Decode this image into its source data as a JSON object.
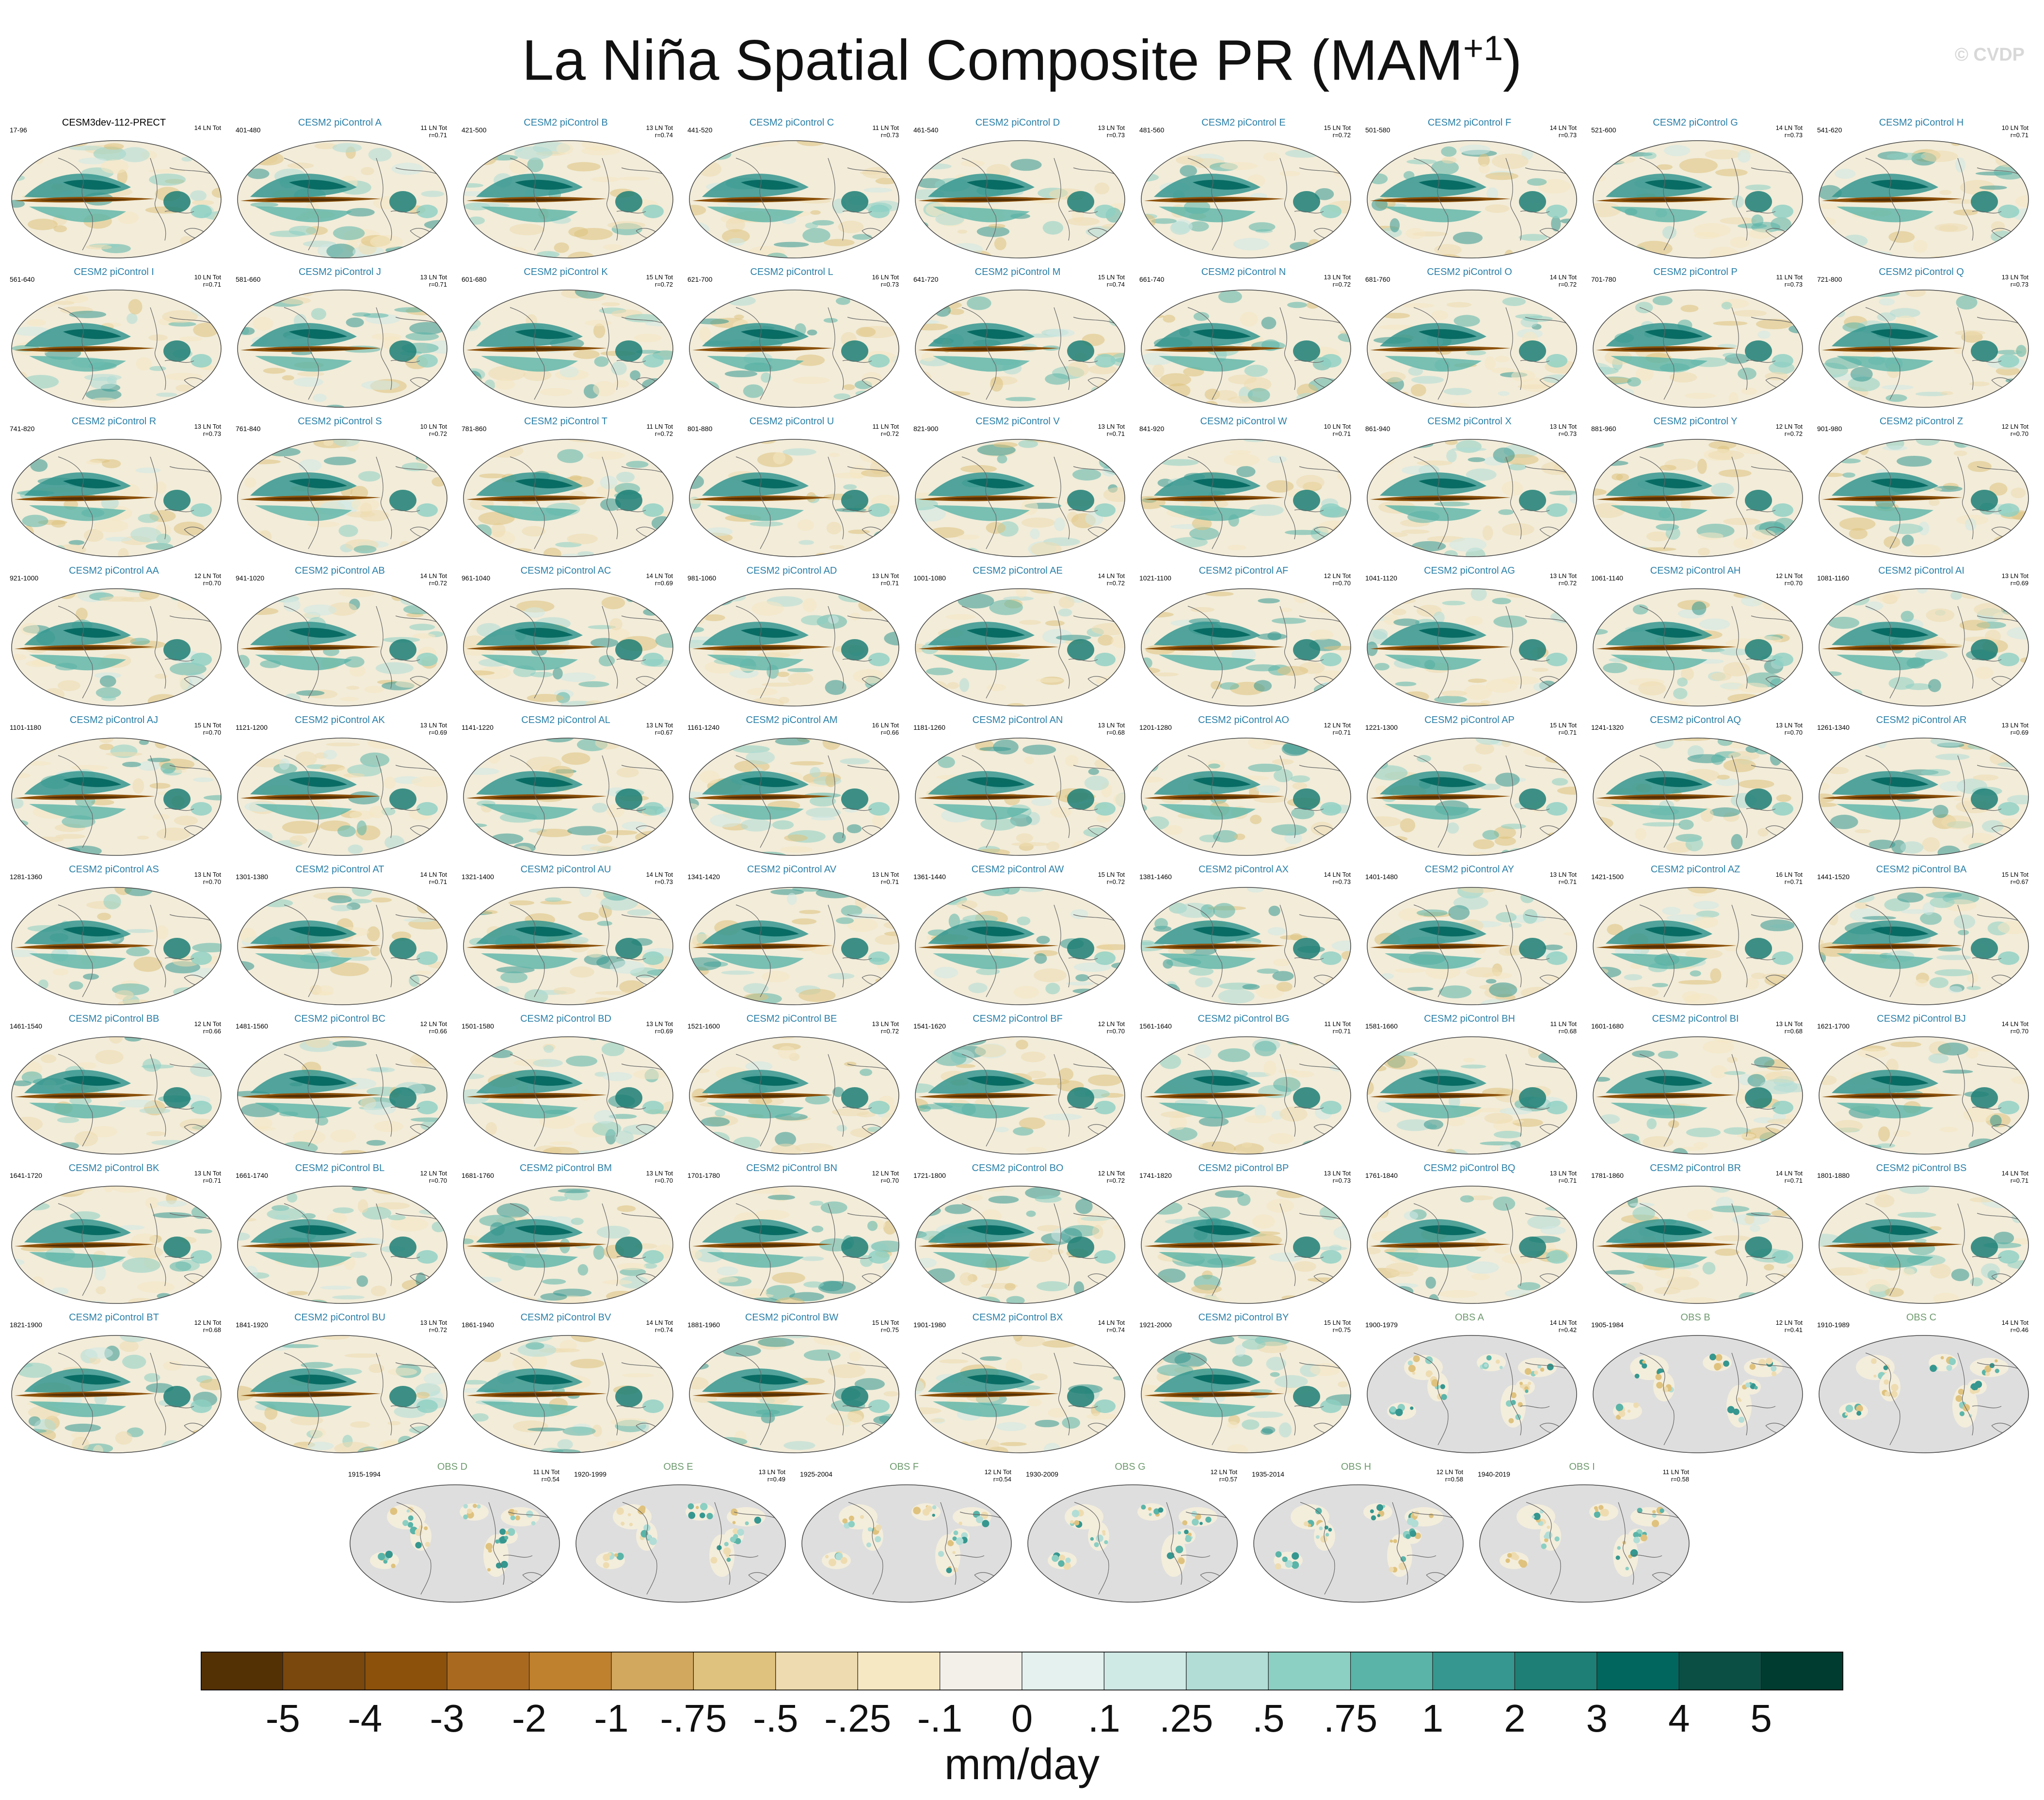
{
  "title_main": "La Niña Spatial Composite PR (MAM",
  "title_sup": "+1",
  "title_end": ")",
  "credit": "© CVDP",
  "colors": {
    "scale": [
      "#543005",
      "#7a470d",
      "#8c510a",
      "#a96a20",
      "#bf812d",
      "#d2a85f",
      "#dfc27d",
      "#eedcb0",
      "#f6e8c3",
      "#f3f0ea",
      "#e4f1ee",
      "#cfe9e5",
      "#b1ddd6",
      "#8ccfc3",
      "#5ab4a8",
      "#35978f",
      "#1d7f75",
      "#01665e",
      "#0b4f44",
      "#003c30"
    ],
    "ocean_base": "#f2ecd9",
    "land_mask": "#dedede"
  },
  "panels": [
    {
      "name": "CESM3dev-112-PRECT",
      "range": "17-96",
      "lnTot": "14 LN Tot",
      "r": ""
    },
    {
      "name": "CESM2 piControl A",
      "range": "401-480",
      "lnTot": "11 LN Tot",
      "r": "r=0.71"
    },
    {
      "name": "CESM2 piControl B",
      "range": "421-500",
      "lnTot": "13 LN Tot",
      "r": "r=0.74"
    },
    {
      "name": "CESM2 piControl C",
      "range": "441-520",
      "lnTot": "11 LN Tot",
      "r": "r=0.73"
    },
    {
      "name": "CESM2 piControl D",
      "range": "461-540",
      "lnTot": "13 LN Tot",
      "r": "r=0.73"
    },
    {
      "name": "CESM2 piControl E",
      "range": "481-560",
      "lnTot": "15 LN Tot",
      "r": "r=0.72"
    },
    {
      "name": "CESM2 piControl F",
      "range": "501-580",
      "lnTot": "14 LN Tot",
      "r": "r=0.73"
    },
    {
      "name": "CESM2 piControl G",
      "range": "521-600",
      "lnTot": "14 LN Tot",
      "r": "r=0.73"
    },
    {
      "name": "CESM2 piControl H",
      "range": "541-620",
      "lnTot": "10 LN Tot",
      "r": "r=0.71"
    },
    {
      "name": "CESM2 piControl I",
      "range": "561-640",
      "lnTot": "10 LN Tot",
      "r": "r=0.71"
    },
    {
      "name": "CESM2 piControl J",
      "range": "581-660",
      "lnTot": "13 LN Tot",
      "r": "r=0.71"
    },
    {
      "name": "CESM2 piControl K",
      "range": "601-680",
      "lnTot": "15 LN Tot",
      "r": "r=0.72"
    },
    {
      "name": "CESM2 piControl L",
      "range": "621-700",
      "lnTot": "16 LN Tot",
      "r": "r=0.73"
    },
    {
      "name": "CESM2 piControl M",
      "range": "641-720",
      "lnTot": "15 LN Tot",
      "r": "r=0.74"
    },
    {
      "name": "CESM2 piControl N",
      "range": "661-740",
      "lnTot": "13 LN Tot",
      "r": "r=0.72"
    },
    {
      "name": "CESM2 piControl O",
      "range": "681-760",
      "lnTot": "14 LN Tot",
      "r": "r=0.72"
    },
    {
      "name": "CESM2 piControl P",
      "range": "701-780",
      "lnTot": "11 LN Tot",
      "r": "r=0.73"
    },
    {
      "name": "CESM2 piControl Q",
      "range": "721-800",
      "lnTot": "13 LN Tot",
      "r": "r=0.73"
    },
    {
      "name": "CESM2 piControl R",
      "range": "741-820",
      "lnTot": "13 LN Tot",
      "r": "r=0.73"
    },
    {
      "name": "CESM2 piControl S",
      "range": "761-840",
      "lnTot": "10 LN Tot",
      "r": "r=0.72"
    },
    {
      "name": "CESM2 piControl T",
      "range": "781-860",
      "lnTot": "11 LN Tot",
      "r": "r=0.72"
    },
    {
      "name": "CESM2 piControl U",
      "range": "801-880",
      "lnTot": "11 LN Tot",
      "r": "r=0.72"
    },
    {
      "name": "CESM2 piControl V",
      "range": "821-900",
      "lnTot": "13 LN Tot",
      "r": "r=0.71"
    },
    {
      "name": "CESM2 piControl W",
      "range": "841-920",
      "lnTot": "10 LN Tot",
      "r": "r=0.71"
    },
    {
      "name": "CESM2 piControl X",
      "range": "861-940",
      "lnTot": "13 LN Tot",
      "r": "r=0.73"
    },
    {
      "name": "CESM2 piControl Y",
      "range": "881-960",
      "lnTot": "12 LN Tot",
      "r": "r=0.72"
    },
    {
      "name": "CESM2 piControl Z",
      "range": "901-980",
      "lnTot": "12 LN Tot",
      "r": "r=0.70"
    },
    {
      "name": "CESM2 piControl AA",
      "range": "921-1000",
      "lnTot": "12 LN Tot",
      "r": "r=0.70"
    },
    {
      "name": "CESM2 piControl AB",
      "range": "941-1020",
      "lnTot": "14 LN Tot",
      "r": "r=0.72"
    },
    {
      "name": "CESM2 piControl AC",
      "range": "961-1040",
      "lnTot": "14 LN Tot",
      "r": "r=0.69"
    },
    {
      "name": "CESM2 piControl AD",
      "range": "981-1060",
      "lnTot": "13 LN Tot",
      "r": "r=0.71"
    },
    {
      "name": "CESM2 piControl AE",
      "range": "1001-1080",
      "lnTot": "14 LN Tot",
      "r": "r=0.72"
    },
    {
      "name": "CESM2 piControl AF",
      "range": "1021-1100",
      "lnTot": "12 LN Tot",
      "r": "r=0.70"
    },
    {
      "name": "CESM2 piControl AG",
      "range": "1041-1120",
      "lnTot": "13 LN Tot",
      "r": "r=0.72"
    },
    {
      "name": "CESM2 piControl AH",
      "range": "1061-1140",
      "lnTot": "12 LN Tot",
      "r": "r=0.70"
    },
    {
      "name": "CESM2 piControl AI",
      "range": "1081-1160",
      "lnTot": "13 LN Tot",
      "r": "r=0.69"
    },
    {
      "name": "CESM2 piControl AJ",
      "range": "1101-1180",
      "lnTot": "15 LN Tot",
      "r": "r=0.70"
    },
    {
      "name": "CESM2 piControl AK",
      "range": "1121-1200",
      "lnTot": "13 LN Tot",
      "r": "r=0.69"
    },
    {
      "name": "CESM2 piControl AL",
      "range": "1141-1220",
      "lnTot": "13 LN Tot",
      "r": "r=0.67"
    },
    {
      "name": "CESM2 piControl AM",
      "range": "1161-1240",
      "lnTot": "16 LN Tot",
      "r": "r=0.66"
    },
    {
      "name": "CESM2 piControl AN",
      "range": "1181-1260",
      "lnTot": "13 LN Tot",
      "r": "r=0.68"
    },
    {
      "name": "CESM2 piControl AO",
      "range": "1201-1280",
      "lnTot": "12 LN Tot",
      "r": "r=0.71"
    },
    {
      "name": "CESM2 piControl AP",
      "range": "1221-1300",
      "lnTot": "15 LN Tot",
      "r": "r=0.71"
    },
    {
      "name": "CESM2 piControl AQ",
      "range": "1241-1320",
      "lnTot": "13 LN Tot",
      "r": "r=0.70"
    },
    {
      "name": "CESM2 piControl AR",
      "range": "1261-1340",
      "lnTot": "13 LN Tot",
      "r": "r=0.69"
    },
    {
      "name": "CESM2 piControl AS",
      "range": "1281-1360",
      "lnTot": "13 LN Tot",
      "r": "r=0.70"
    },
    {
      "name": "CESM2 piControl AT",
      "range": "1301-1380",
      "lnTot": "14 LN Tot",
      "r": "r=0.71"
    },
    {
      "name": "CESM2 piControl AU",
      "range": "1321-1400",
      "lnTot": "14 LN Tot",
      "r": "r=0.73"
    },
    {
      "name": "CESM2 piControl AV",
      "range": "1341-1420",
      "lnTot": "13 LN Tot",
      "r": "r=0.71"
    },
    {
      "name": "CESM2 piControl AW",
      "range": "1361-1440",
      "lnTot": "15 LN Tot",
      "r": "r=0.72"
    },
    {
      "name": "CESM2 piControl AX",
      "range": "1381-1460",
      "lnTot": "14 LN Tot",
      "r": "r=0.73"
    },
    {
      "name": "CESM2 piControl AY",
      "range": "1401-1480",
      "lnTot": "13 LN Tot",
      "r": "r=0.71"
    },
    {
      "name": "CESM2 piControl AZ",
      "range": "1421-1500",
      "lnTot": "16 LN Tot",
      "r": "r=0.71"
    },
    {
      "name": "CESM2 piControl BA",
      "range": "1441-1520",
      "lnTot": "15 LN Tot",
      "r": "r=0.67"
    },
    {
      "name": "CESM2 piControl BB",
      "range": "1461-1540",
      "lnTot": "12 LN Tot",
      "r": "r=0.66"
    },
    {
      "name": "CESM2 piControl BC",
      "range": "1481-1560",
      "lnTot": "12 LN Tot",
      "r": "r=0.66"
    },
    {
      "name": "CESM2 piControl BD",
      "range": "1501-1580",
      "lnTot": "13 LN Tot",
      "r": "r=0.69"
    },
    {
      "name": "CESM2 piControl BE",
      "range": "1521-1600",
      "lnTot": "13 LN Tot",
      "r": "r=0.72"
    },
    {
      "name": "CESM2 piControl BF",
      "range": "1541-1620",
      "lnTot": "12 LN Tot",
      "r": "r=0.70"
    },
    {
      "name": "CESM2 piControl BG",
      "range": "1561-1640",
      "lnTot": "11 LN Tot",
      "r": "r=0.71"
    },
    {
      "name": "CESM2 piControl BH",
      "range": "1581-1660",
      "lnTot": "11 LN Tot",
      "r": "r=0.68"
    },
    {
      "name": "CESM2 piControl BI",
      "range": "1601-1680",
      "lnTot": "13 LN Tot",
      "r": "r=0.68"
    },
    {
      "name": "CESM2 piControl BJ",
      "range": "1621-1700",
      "lnTot": "14 LN Tot",
      "r": "r=0.70"
    },
    {
      "name": "CESM2 piControl BK",
      "range": "1641-1720",
      "lnTot": "13 LN Tot",
      "r": "r=0.71"
    },
    {
      "name": "CESM2 piControl BL",
      "range": "1661-1740",
      "lnTot": "12 LN Tot",
      "r": "r=0.70"
    },
    {
      "name": "CESM2 piControl BM",
      "range": "1681-1760",
      "lnTot": "13 LN Tot",
      "r": "r=0.70"
    },
    {
      "name": "CESM2 piControl BN",
      "range": "1701-1780",
      "lnTot": "12 LN Tot",
      "r": "r=0.70"
    },
    {
      "name": "CESM2 piControl BO",
      "range": "1721-1800",
      "lnTot": "12 LN Tot",
      "r": "r=0.72"
    },
    {
      "name": "CESM2 piControl BP",
      "range": "1741-1820",
      "lnTot": "13 LN Tot",
      "r": "r=0.73"
    },
    {
      "name": "CESM2 piControl BQ",
      "range": "1761-1840",
      "lnTot": "13 LN Tot",
      "r": "r=0.71"
    },
    {
      "name": "CESM2 piControl BR",
      "range": "1781-1860",
      "lnTot": "14 LN Tot",
      "r": "r=0.71"
    },
    {
      "name": "CESM2 piControl BS",
      "range": "1801-1880",
      "lnTot": "14 LN Tot",
      "r": "r=0.71"
    },
    {
      "name": "CESM2 piControl BT",
      "range": "1821-1900",
      "lnTot": "12 LN Tot",
      "r": "r=0.68"
    },
    {
      "name": "CESM2 piControl BU",
      "range": "1841-1920",
      "lnTot": "13 LN Tot",
      "r": "r=0.72"
    },
    {
      "name": "CESM2 piControl BV",
      "range": "1861-1940",
      "lnTot": "14 LN Tot",
      "r": "r=0.74"
    },
    {
      "name": "CESM2 piControl BW",
      "range": "1881-1960",
      "lnTot": "15 LN Tot",
      "r": "r=0.75"
    },
    {
      "name": "CESM2 piControl BX",
      "range": "1901-1980",
      "lnTot": "14 LN Tot",
      "r": "r=0.74"
    },
    {
      "name": "CESM2 piControl BY",
      "range": "1921-2000",
      "lnTot": "15 LN Tot",
      "r": "r=0.75"
    },
    {
      "name": "OBS A",
      "range": "1900-1979",
      "lnTot": "14 LN Tot",
      "r": "r=0.42",
      "obs": true
    },
    {
      "name": "OBS B",
      "range": "1905-1984",
      "lnTot": "12 LN Tot",
      "r": "r=0.41",
      "obs": true
    },
    {
      "name": "OBS C",
      "range": "1910-1989",
      "lnTot": "14 LN Tot",
      "r": "r=0.46",
      "obs": true
    },
    {
      "name": "OBS D",
      "range": "1915-1994",
      "lnTot": "11 LN Tot",
      "r": "r=0.54",
      "obs": true
    },
    {
      "name": "OBS E",
      "range": "1920-1999",
      "lnTot": "13 LN Tot",
      "r": "r=0.49",
      "obs": true
    },
    {
      "name": "OBS F",
      "range": "1925-2004",
      "lnTot": "12 LN Tot",
      "r": "r=0.54",
      "obs": true
    },
    {
      "name": "OBS G",
      "range": "1930-2009",
      "lnTot": "12 LN Tot",
      "r": "r=0.57",
      "obs": true
    },
    {
      "name": "OBS H",
      "range": "1935-2014",
      "lnTot": "12 LN Tot",
      "r": "r=0.58",
      "obs": true
    },
    {
      "name": "OBS I",
      "range": "1940-2019",
      "lnTot": "11 LN Tot",
      "r": "r=0.58",
      "obs": true
    }
  ],
  "colorbar": {
    "ticks": [
      "-5",
      "-4",
      "-3",
      "-2",
      "-1",
      "-.75",
      "-.5",
      "-.25",
      "-.1",
      "0",
      ".1",
      ".25",
      ".5",
      ".75",
      "1",
      "2",
      "3",
      "4",
      "5"
    ],
    "label": "mm/day"
  }
}
